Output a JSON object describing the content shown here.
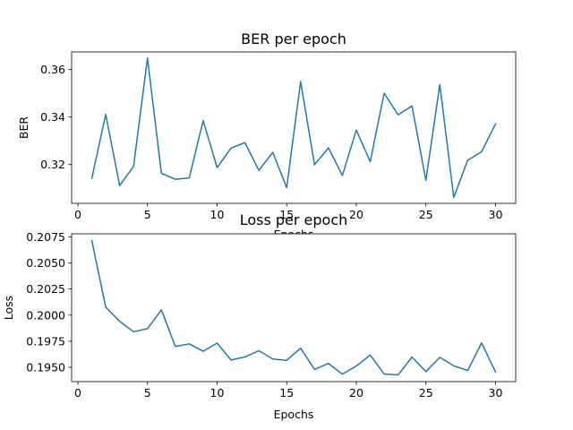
{
  "chart_data": [
    {
      "type": "line",
      "title": "BER per epoch",
      "xlabel": "Epochs",
      "ylabel": "BER",
      "xlim": [
        -0.45,
        31.45
      ],
      "ylim": [
        0.3037,
        0.3673
      ],
      "xticks": [
        0,
        5,
        10,
        15,
        20,
        25,
        30
      ],
      "xtick_labels": [
        "0",
        "5",
        "10",
        "15",
        "20",
        "25",
        "30"
      ],
      "yticks": [
        0.32,
        0.34,
        0.36
      ],
      "ytick_labels": [
        "0.32",
        "0.34",
        "0.36"
      ],
      "grid": false,
      "series": [
        {
          "color": "#1f77b4",
          "x": [
            1,
            2,
            3,
            4,
            5,
            6,
            7,
            8,
            9,
            10,
            11,
            12,
            13,
            14,
            15,
            16,
            17,
            18,
            19,
            20,
            21,
            22,
            23,
            24,
            25,
            26,
            27,
            28,
            29,
            30
          ],
          "y": [
            0.3142,
            0.3411,
            0.3112,
            0.3192,
            0.3647,
            0.3163,
            0.3138,
            0.3144,
            0.3385,
            0.3187,
            0.3269,
            0.3292,
            0.3176,
            0.3251,
            0.3103,
            0.3549,
            0.3199,
            0.327,
            0.3154,
            0.3345,
            0.3212,
            0.35,
            0.3409,
            0.3446,
            0.3134,
            0.3536,
            0.3062,
            0.3218,
            0.3254,
            0.337
          ]
        }
      ]
    },
    {
      "type": "line",
      "title": "Loss per epoch",
      "xlabel": "Epochs",
      "ylabel": "Loss",
      "xlim": [
        -0.45,
        31.45
      ],
      "ylim": [
        0.19363,
        0.20779
      ],
      "xticks": [
        0,
        5,
        10,
        15,
        20,
        25,
        30
      ],
      "xtick_labels": [
        "0",
        "5",
        "10",
        "15",
        "20",
        "25",
        "30"
      ],
      "yticks": [
        0.195,
        0.1975,
        0.2,
        0.2025,
        0.205,
        0.2075
      ],
      "ytick_labels": [
        "0.1950",
        "0.1975",
        "0.2000",
        "0.2025",
        "0.2050",
        "0.2075"
      ],
      "grid": false,
      "series": [
        {
          "color": "#1f77b4",
          "x": [
            1,
            2,
            3,
            4,
            5,
            6,
            7,
            8,
            9,
            10,
            11,
            12,
            13,
            14,
            15,
            16,
            17,
            18,
            19,
            20,
            21,
            22,
            23,
            24,
            25,
            26,
            27,
            28,
            29,
            30
          ],
          "y": [
            0.20714,
            0.20077,
            0.19941,
            0.19841,
            0.1987,
            0.2005,
            0.197,
            0.19725,
            0.19654,
            0.19732,
            0.1957,
            0.196,
            0.19659,
            0.1958,
            0.19567,
            0.19683,
            0.1948,
            0.19537,
            0.19435,
            0.19512,
            0.19618,
            0.19436,
            0.19427,
            0.19598,
            0.19459,
            0.19596,
            0.19514,
            0.1947,
            0.19734,
            0.19455
          ]
        }
      ]
    }
  ]
}
